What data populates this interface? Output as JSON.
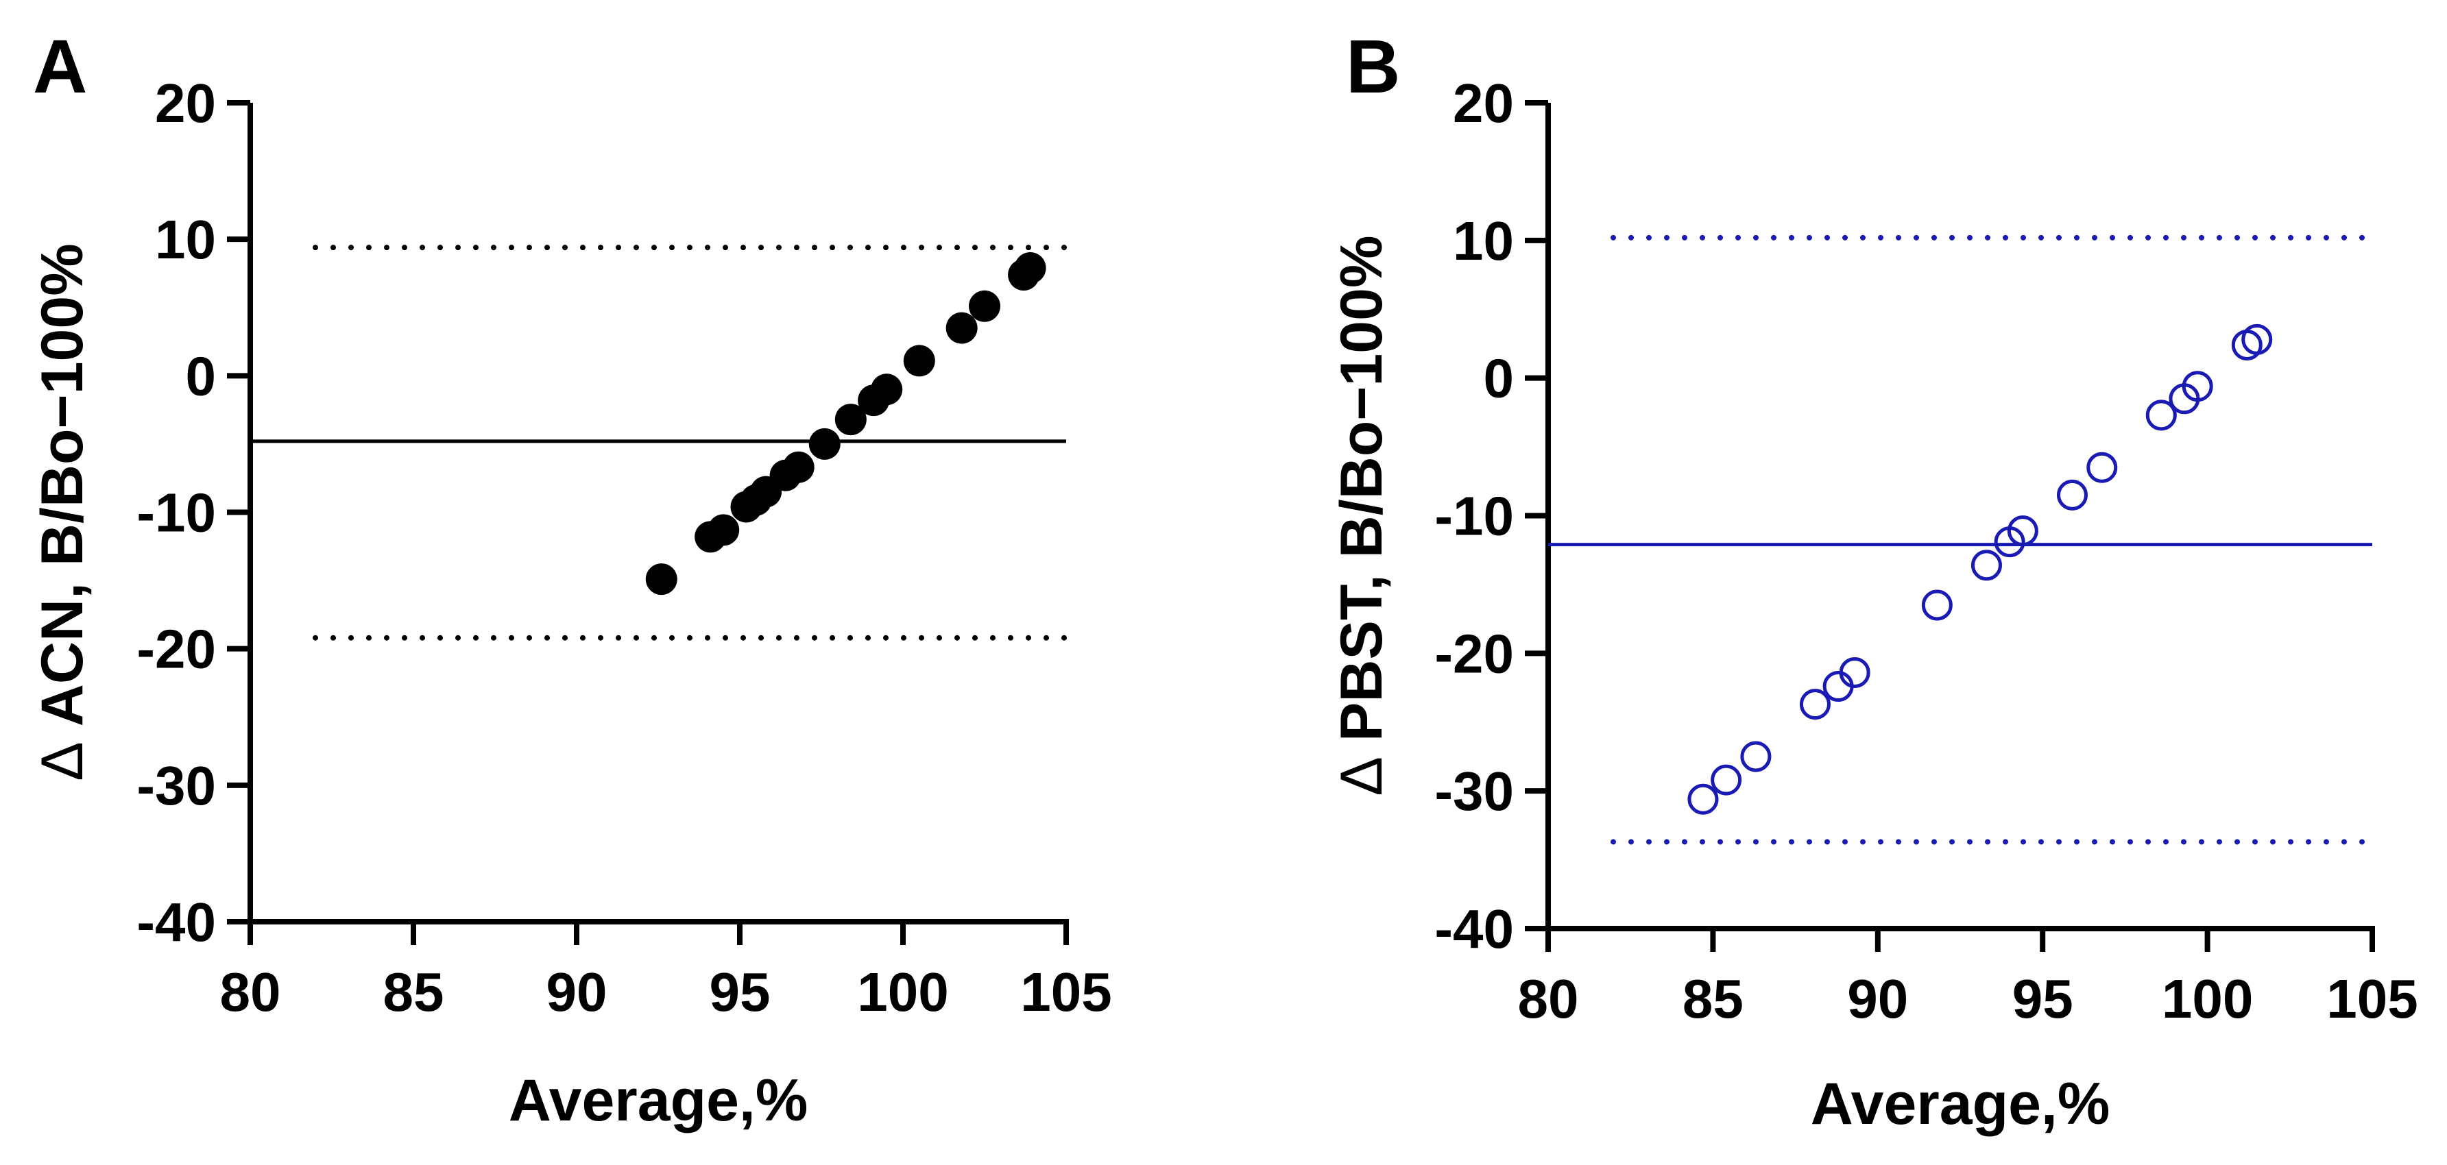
{
  "chart_data": [
    {
      "type": "scatter",
      "panel_label": "A",
      "xlabel": "Average,%",
      "ylabel_symbol": "Δ",
      "ylabel": "ACN, B/Bo−100%",
      "xlim": [
        80,
        105
      ],
      "ylim": [
        -40,
        20
      ],
      "xticks": [
        80,
        85,
        90,
        95,
        100,
        105
      ],
      "yticks": [
        -40,
        -30,
        -20,
        -10,
        0,
        10,
        20
      ],
      "color": "#000000",
      "marker": "filled",
      "mean_line": -4.8,
      "loa_upper": 9.4,
      "loa_lower": -19.2,
      "points": [
        [
          92.6,
          -14.9
        ],
        [
          94.1,
          -11.8
        ],
        [
          94.5,
          -11.3
        ],
        [
          95.2,
          -9.6
        ],
        [
          95.5,
          -9.1
        ],
        [
          95.8,
          -8.5
        ],
        [
          96.4,
          -7.3
        ],
        [
          96.8,
          -6.7
        ],
        [
          97.6,
          -5.0
        ],
        [
          98.4,
          -3.2
        ],
        [
          99.1,
          -1.8
        ],
        [
          99.5,
          -1.0
        ],
        [
          100.5,
          1.1
        ],
        [
          101.8,
          3.5
        ],
        [
          102.5,
          5.1
        ],
        [
          103.7,
          7.4
        ],
        [
          103.9,
          7.9
        ]
      ]
    },
    {
      "type": "scatter",
      "panel_label": "B",
      "xlabel": "Average,%",
      "ylabel_symbol": "Δ",
      "ylabel": "PBST, B/Bo−100%",
      "xlim": [
        80,
        105
      ],
      "ylim": [
        -40,
        20
      ],
      "xticks": [
        80,
        85,
        90,
        95,
        100,
        105
      ],
      "yticks": [
        -40,
        -30,
        -20,
        -10,
        0,
        10,
        20
      ],
      "color": "#1a1ab4",
      "marker": "open",
      "mean_line": -12.1,
      "loa_upper": 10.2,
      "loa_lower": -33.7,
      "points": [
        [
          84.7,
          -30.6
        ],
        [
          85.4,
          -29.2
        ],
        [
          86.3,
          -27.5
        ],
        [
          88.1,
          -23.7
        ],
        [
          88.8,
          -22.4
        ],
        [
          89.3,
          -21.4
        ],
        [
          91.8,
          -16.5
        ],
        [
          93.3,
          -13.6
        ],
        [
          94.0,
          -11.9
        ],
        [
          94.4,
          -11.1
        ],
        [
          95.9,
          -8.5
        ],
        [
          96.8,
          -6.5
        ],
        [
          98.6,
          -2.7
        ],
        [
          99.3,
          -1.5
        ],
        [
          99.7,
          -0.6
        ],
        [
          101.2,
          2.4
        ],
        [
          101.5,
          2.8
        ]
      ]
    }
  ]
}
